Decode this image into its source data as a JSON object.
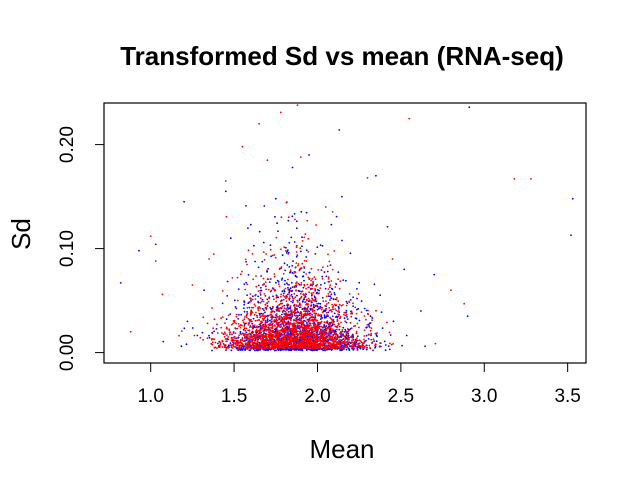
{
  "chart_data": {
    "type": "scatter",
    "title": "Transformed Sd vs mean (RNA-seq)",
    "xlabel": "Mean",
    "ylabel": "Sd",
    "xlim": [
      0.72,
      3.61
    ],
    "ylim": [
      -0.01,
      0.24
    ],
    "x_ticks": [
      1.0,
      1.5,
      2.0,
      2.5,
      3.0,
      3.5
    ],
    "x_tick_labels": [
      "1.0",
      "1.5",
      "2.0",
      "2.5",
      "3.0",
      "3.5"
    ],
    "y_ticks": [
      0.0,
      0.1,
      0.2
    ],
    "y_tick_labels": [
      "0.00",
      "0.10",
      "0.20"
    ],
    "grid": false,
    "legend": "none",
    "colors": {
      "blue": "#0000ff",
      "red": "#ff0000"
    },
    "series": [
      {
        "color": "#0000ff",
        "points": [
          [
            0.82,
            0.067
          ],
          [
            0.93,
            0.098
          ],
          [
            1.03,
            0.104
          ],
          [
            1.2,
            0.145
          ],
          [
            1.48,
            0.11
          ],
          [
            1.6,
            0.123
          ],
          [
            1.75,
            0.148
          ],
          [
            1.85,
            0.178
          ],
          [
            1.95,
            0.19
          ],
          [
            2.13,
            0.214
          ],
          [
            2.35,
            0.17
          ],
          [
            1.45,
            0.155
          ],
          [
            2.42,
            0.121
          ],
          [
            2.52,
            0.08
          ],
          [
            2.7,
            0.075
          ],
          [
            2.9,
            0.035
          ],
          [
            2.91,
            0.236
          ],
          [
            3.53,
            0.148
          ],
          [
            3.52,
            0.113
          ],
          [
            1.22,
            0.03
          ],
          [
            1.32,
            0.06
          ],
          [
            2.62,
            0.04
          ]
        ],
        "cluster": {
          "n": 1700,
          "x_center": 1.88,
          "x_spread": 0.2,
          "y_floor": 0.002,
          "y_mean": 0.025
        }
      },
      {
        "color": "#ff0000",
        "points": [
          [
            0.88,
            0.02
          ],
          [
            1.0,
            0.112
          ],
          [
            1.03,
            0.088
          ],
          [
            1.07,
            0.056
          ],
          [
            1.25,
            0.065
          ],
          [
            1.45,
            0.165
          ],
          [
            1.55,
            0.198
          ],
          [
            1.65,
            0.22
          ],
          [
            1.78,
            0.231
          ],
          [
            1.88,
            0.238
          ],
          [
            2.0,
            0.243
          ],
          [
            2.55,
            0.225
          ],
          [
            3.18,
            0.167
          ],
          [
            3.28,
            0.167
          ],
          [
            2.3,
            0.168
          ],
          [
            2.88,
            0.047
          ],
          [
            2.8,
            0.06
          ],
          [
            1.9,
            0.188
          ],
          [
            2.05,
            0.14
          ],
          [
            1.7,
            0.185
          ],
          [
            1.35,
            0.09
          ],
          [
            2.45,
            0.09
          ]
        ],
        "cluster": {
          "n": 2200,
          "x_center": 1.85,
          "x_spread": 0.2,
          "y_floor": 0.004,
          "y_mean": 0.022
        }
      }
    ]
  }
}
